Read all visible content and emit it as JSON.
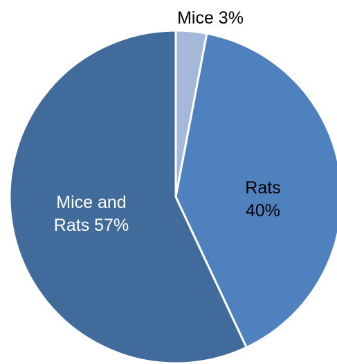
{
  "chart_data": {
    "type": "pie",
    "title": "",
    "start_angle_deg": 0,
    "direction": "clockwise",
    "slices": [
      {
        "label_lines": [
          "Mice 3%"
        ],
        "value": 3,
        "color": "#a5b8da",
        "label_color": "#000000"
      },
      {
        "label_lines": [
          "Rats",
          "40%"
        ],
        "value": 40,
        "color": "#4e81bd",
        "label_color": "#000000"
      },
      {
        "label_lines": [
          "Mice and",
          "Rats 57%"
        ],
        "value": 57,
        "color": "#416b9a",
        "label_color": "#ffffff"
      }
    ]
  }
}
